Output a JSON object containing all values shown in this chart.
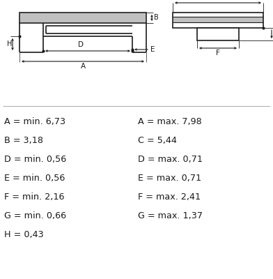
{
  "background_color": "#ffffff",
  "text_color": "#1a1a1a",
  "line_color": "#1a1a1a",
  "gray_fill": "#c0c0c0",
  "left_labels": [
    "A = min. 6,73",
    "B = 3,18",
    "D = min. 0,56",
    "E = min. 0,56",
    "F = min. 2,16",
    "G = min. 0,66",
    "H = 0,43"
  ],
  "right_labels": [
    "A = max. 7,98",
    "C = 5,44",
    "D = max. 0,71",
    "E = max. 0,71",
    "F = max. 2,41",
    "G = max. 1,37"
  ],
  "fig_width": 3.92,
  "fig_height": 4.0,
  "dpi": 100
}
